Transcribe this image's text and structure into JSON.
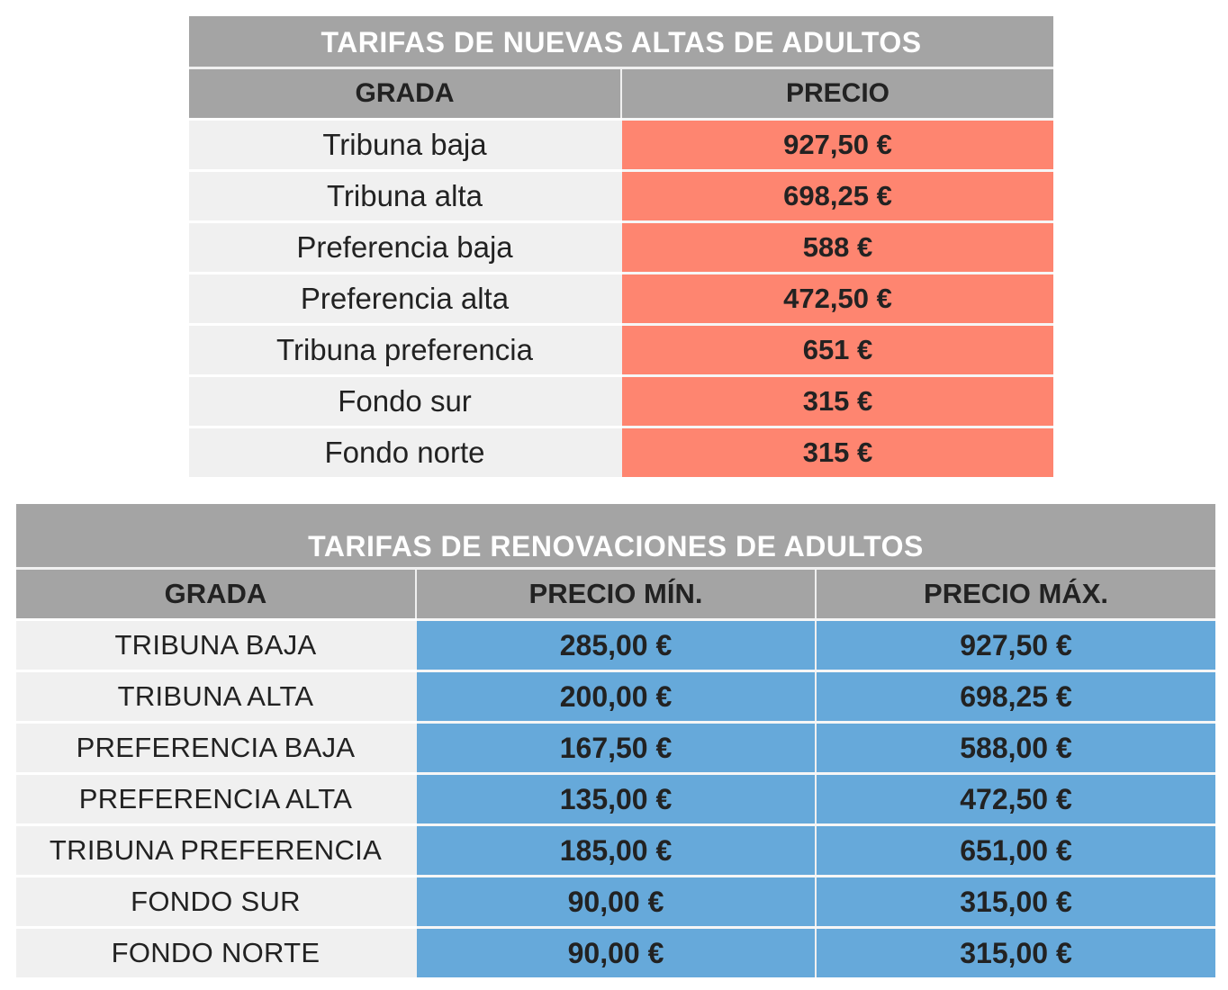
{
  "new_members": {
    "title": "TARIFAS DE NUEVAS ALTAS DE ADULTOS",
    "headers": [
      "GRADA",
      "PRECIO"
    ],
    "accent_color": "#fe8570",
    "rows": [
      {
        "grada": "Tribuna baja",
        "precio": "927,50 €"
      },
      {
        "grada": "Tribuna alta",
        "precio": "698,25 €"
      },
      {
        "grada": "Preferencia baja",
        "precio": "588 €"
      },
      {
        "grada": "Preferencia alta",
        "precio": "472,50 €"
      },
      {
        "grada": "Tribuna preferencia",
        "precio": "651 €"
      },
      {
        "grada": "Fondo sur",
        "precio": "315 €"
      },
      {
        "grada": "Fondo norte",
        "precio": "315 €"
      }
    ]
  },
  "renewals": {
    "title": "TARIFAS DE RENOVACIONES DE ADULTOS",
    "headers": [
      "GRADA",
      "PRECIO MÍN.",
      "PRECIO MÁX."
    ],
    "accent_color": "#66a9da",
    "rows": [
      {
        "grada": "TRIBUNA BAJA",
        "min": "285,00 €",
        "max": "927,50 €"
      },
      {
        "grada": "TRIBUNA ALTA",
        "min": "200,00 €",
        "max": "698,25 €"
      },
      {
        "grada": "PREFERENCIA BAJA",
        "min": "167,50 €",
        "max": "588,00 €"
      },
      {
        "grada": "PREFERENCIA ALTA",
        "min": "135,00 €",
        "max": "472,50 €"
      },
      {
        "grada": "TRIBUNA PREFERENCIA",
        "min": "185,00 €",
        "max": "651,00 €"
      },
      {
        "grada": "FONDO SUR",
        "min": "90,00 €",
        "max": "315,00 €"
      },
      {
        "grada": "FONDO NORTE",
        "min": "90,00 €",
        "max": "315,00 €"
      }
    ]
  }
}
